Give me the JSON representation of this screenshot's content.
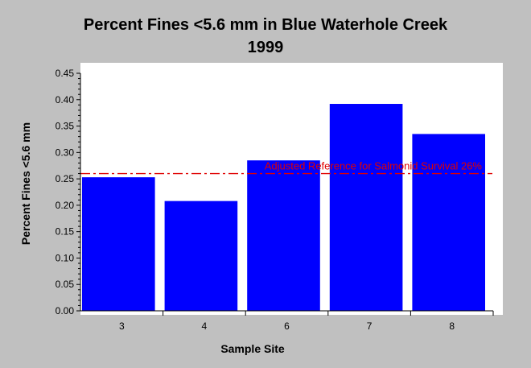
{
  "chart_data": {
    "type": "bar",
    "title": "Percent Fines <5.6 mm in Blue Waterhole Creek",
    "subtitle": "1999",
    "xlabel": "Sample Site",
    "ylabel": "Percent Fines <5.6 mm",
    "categories": [
      "3",
      "4",
      "6",
      "7",
      "8"
    ],
    "values": [
      0.253,
      0.208,
      0.285,
      0.392,
      0.335
    ],
    "ylim": [
      0,
      0.45
    ],
    "yticks": [
      "0.00",
      "0.05",
      "0.10",
      "0.15",
      "0.20",
      "0.25",
      "0.30",
      "0.35",
      "0.40",
      "0.45"
    ],
    "bar_color": "#0000ff",
    "reference_line": {
      "value": 0.26,
      "label": "Adjusted Reference for Salmonid Survival 26%",
      "color": "#e00000"
    },
    "grid": false,
    "legend": "none"
  }
}
